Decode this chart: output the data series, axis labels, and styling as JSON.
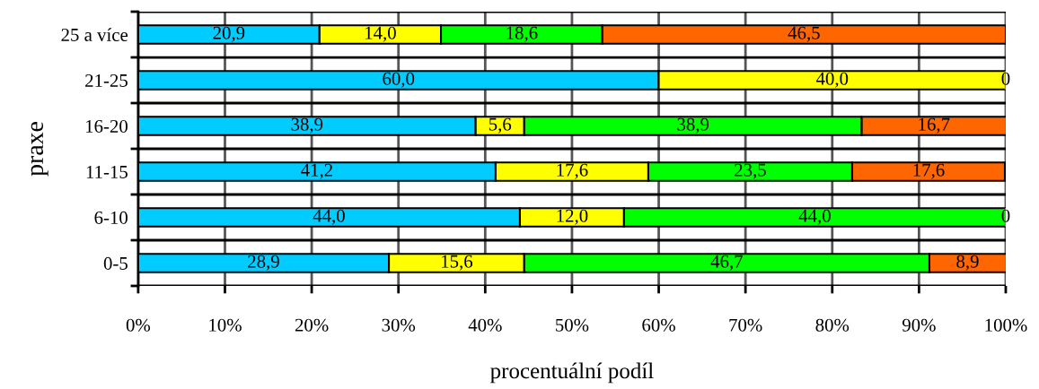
{
  "chart_data": {
    "type": "bar",
    "orientation": "horizontal",
    "stacked": true,
    "xlabel": "procentuální podíl",
    "ylabel": "praxe",
    "categories": [
      "25 a více",
      "21-25",
      "16-20",
      "11-15",
      "6-10",
      "0-5"
    ],
    "series": [
      {
        "color": "#00ccff",
        "values": [
          20.9,
          60.0,
          38.9,
          41.2,
          44.0,
          28.9
        ],
        "value_labels": [
          "20,9",
          "60,0",
          "38,9",
          "41,2",
          "44,0",
          "28,9"
        ]
      },
      {
        "color": "#ffff00",
        "values": [
          14.0,
          40.0,
          5.6,
          17.6,
          12.0,
          15.6
        ],
        "value_labels": [
          "14,0",
          "40,0",
          "5,6",
          "17,6",
          "12,0",
          "15,6"
        ]
      },
      {
        "color": "#00ff00",
        "values": [
          18.6,
          0,
          38.9,
          23.5,
          44.0,
          46.7
        ],
        "value_labels": [
          "18,6",
          null,
          "38,9",
          "23,5",
          "44,0",
          "46,7"
        ]
      },
      {
        "color": "#ff6600",
        "values": [
          46.5,
          0,
          16.7,
          17.6,
          0,
          8.9
        ],
        "value_labels": [
          "46,5",
          "0",
          "16,7",
          "17,6",
          "0",
          "8,9"
        ]
      }
    ],
    "xlim": [
      0,
      100
    ],
    "xticks": [
      {
        "value": 0,
        "label": "0%"
      },
      {
        "value": 10,
        "label": "10%"
      },
      {
        "value": 20,
        "label": "20%"
      },
      {
        "value": 30,
        "label": "30%"
      },
      {
        "value": 40,
        "label": "40%"
      },
      {
        "value": 50,
        "label": "50%"
      },
      {
        "value": 60,
        "label": "60%"
      },
      {
        "value": 70,
        "label": "70%"
      },
      {
        "value": 80,
        "label": "80%"
      },
      {
        "value": 90,
        "label": "90%"
      },
      {
        "value": 100,
        "label": "100%"
      }
    ],
    "grid": true
  }
}
